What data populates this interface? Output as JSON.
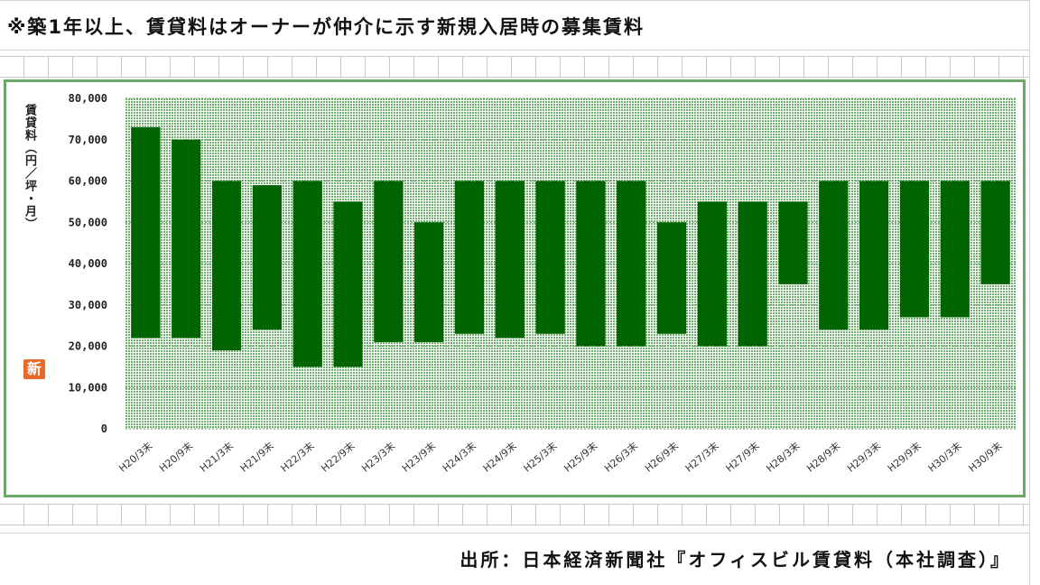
{
  "note": "※築1年以上、賃貸料はオーナーが仲介に示す新規入居時の募集賃料",
  "source": "出所：日本経済新聞社『オフィスビル賃貸料（本社調査）』",
  "badge": "新",
  "colors": {
    "bar": "#006400",
    "plot_bg": "#a9d4a9",
    "frame": "#6aa86a",
    "badge": "#e86a2a"
  },
  "chart_data": {
    "type": "bar",
    "subtype": "floating-range",
    "title": "",
    "xlabel": "",
    "ylabel": "賃貸料（円／坪・月）",
    "ylim": [
      0,
      80000
    ],
    "yticks": [
      "80,000",
      "70,000",
      "60,000",
      "50,000",
      "40,000",
      "30,000",
      "20,000",
      "10,000",
      "0"
    ],
    "ytick_values": [
      80000,
      70000,
      60000,
      50000,
      40000,
      30000,
      20000,
      10000,
      0
    ],
    "grid": true,
    "categories": [
      "H20/3末",
      "H20/9末",
      "H21/3末",
      "H21/9末",
      "H22/3末",
      "H22/9末",
      "H23/3末",
      "H23/9末",
      "H24/3末",
      "H24/9末",
      "H25/3末",
      "H25/9末",
      "H26/3末",
      "H26/9末",
      "H27/3末",
      "H27/9末",
      "H28/3末",
      "H28/9末",
      "H29/3末",
      "H29/9末",
      "H30/3末",
      "H30/9末"
    ],
    "series": [
      {
        "low": [
          22000,
          22000,
          19000,
          24000,
          15000,
          15000,
          21000,
          21000,
          23000,
          22000,
          23000,
          20000,
          20000,
          23000,
          20000,
          20000,
          35000,
          24000,
          24000,
          27000,
          27000,
          35000
        ],
        "high": [
          73000,
          70000,
          60000,
          59000,
          60000,
          55000,
          60000,
          50000,
          60000,
          60000,
          60000,
          60000,
          60000,
          50000,
          55000,
          55000,
          55000,
          60000,
          60000,
          60000,
          60000,
          60000
        ]
      }
    ]
  }
}
